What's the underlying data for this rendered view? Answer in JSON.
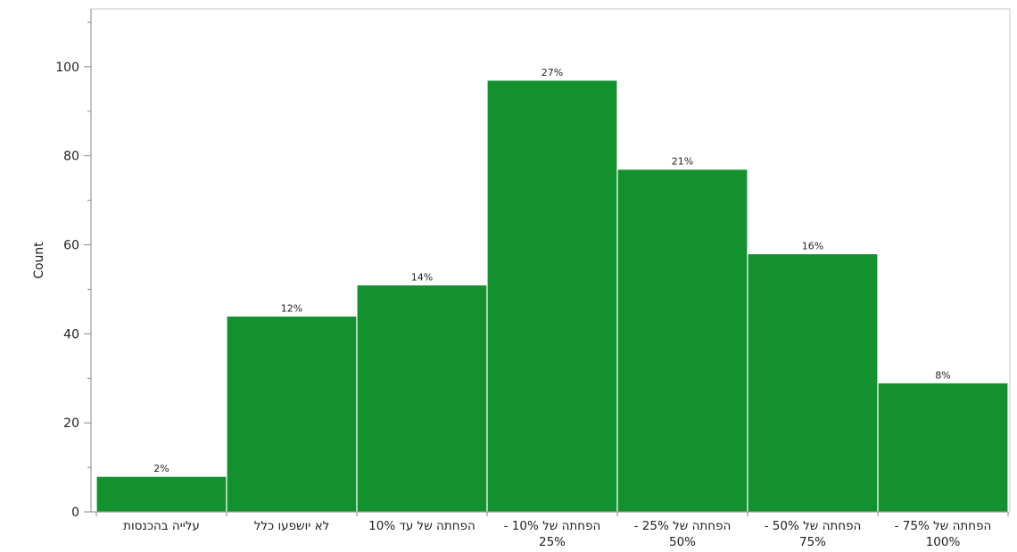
{
  "chart_data": {
    "type": "bar",
    "title": "",
    "xlabel": "",
    "ylabel": "Count",
    "ylim": [
      0,
      113
    ],
    "yticks": [
      0,
      20,
      40,
      60,
      80,
      100
    ],
    "grid": false,
    "bar_color": "#13912F",
    "categories": [
      [
        "עלייה בהכנסות"
      ],
      [
        "לא יושפעו כלל"
      ],
      [
        "הפחתה של עד 10%"
      ],
      [
        "הפחתה של 10% -",
        "25%"
      ],
      [
        "הפחתה של 25% -",
        "50%"
      ],
      [
        "הפחתה של 50% -",
        "75%"
      ],
      [
        "הפחתה של 75% -",
        "100%"
      ]
    ],
    "values": [
      8,
      44,
      51,
      97,
      77,
      58,
      29
    ],
    "data_labels": [
      "2%",
      "12%",
      "14%",
      "27%",
      "21%",
      "16%",
      "8%"
    ]
  }
}
